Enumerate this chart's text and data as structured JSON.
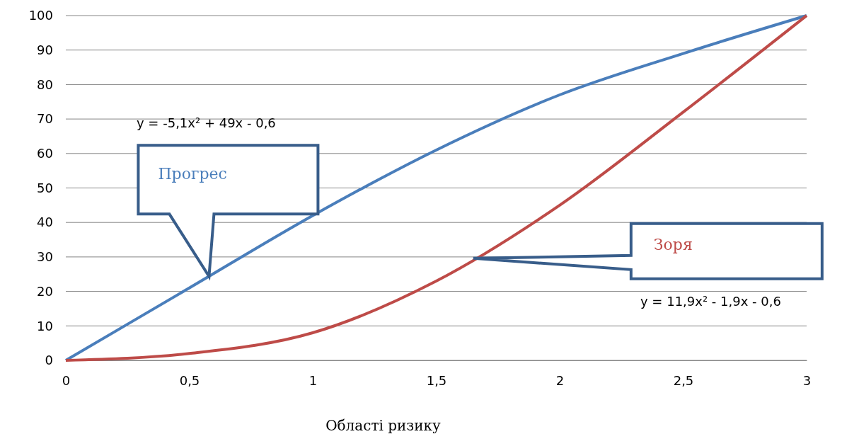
{
  "chart_data": {
    "type": "line",
    "xlabel": "Області ризику",
    "x": [
      0,
      0.5,
      1,
      1.5,
      2,
      2.5,
      3
    ],
    "series": [
      {
        "name": "Прогрес",
        "color": "#4a7ebb",
        "values": [
          0,
          21,
          42,
          61,
          77,
          89,
          100
        ]
      },
      {
        "name": "Зоря",
        "color": "#be4b48",
        "values": [
          0,
          2,
          8,
          23,
          45,
          72,
          100
        ]
      }
    ],
    "xlim": [
      0,
      3
    ],
    "xticks": [
      0,
      {
        "value": 0.5,
        "label": "0,5"
      },
      1,
      {
        "value": 1.5,
        "label": "1,5"
      },
      2,
      {
        "value": 2.5,
        "label": "2,5"
      },
      3
    ],
    "ylim": [
      0,
      100
    ],
    "yticks": [
      0,
      10,
      20,
      30,
      40,
      50,
      60,
      70,
      80,
      90,
      100
    ],
    "grid": "y",
    "marker": "none",
    "line_style": "solid",
    "annotations": [
      "y = -5,1x² + 49x - 0,6",
      "y = 11,9x² - 1,9x - 0,6"
    ]
  }
}
